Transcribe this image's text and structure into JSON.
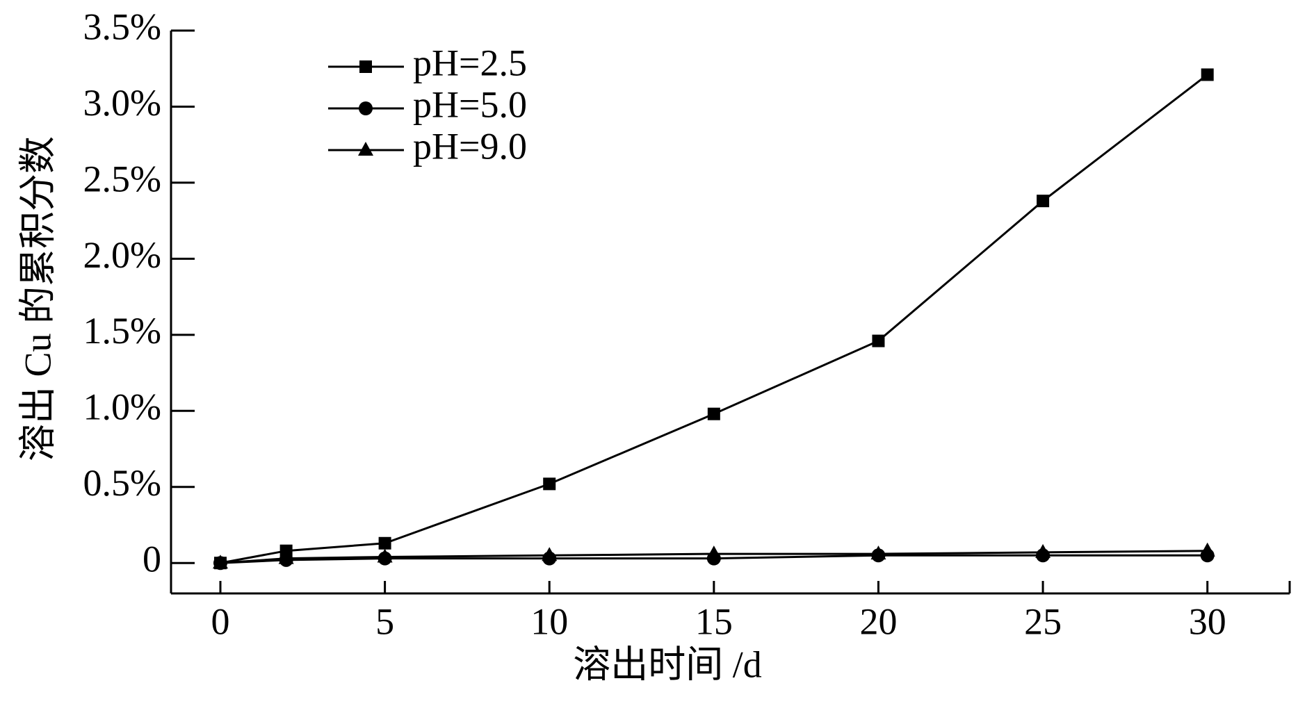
{
  "chart_data": {
    "type": "line",
    "x_label": "溶出时间 /d",
    "y_label": "溶出 Cu 的累积分数",
    "x": [
      0,
      2,
      5,
      10,
      15,
      20,
      25,
      30
    ],
    "series": [
      {
        "name": "pH=2.5",
        "color": "#000000",
        "marker": "square",
        "values": [
          0,
          0.08,
          0.13,
          0.52,
          0.98,
          1.46,
          2.38,
          3.21
        ]
      },
      {
        "name": "pH=5.0",
        "color": "#000000",
        "marker": "circle",
        "values": [
          0,
          0.02,
          0.03,
          0.03,
          0.03,
          0.05,
          0.05,
          0.05
        ]
      },
      {
        "name": "pH=9.0",
        "color": "#000000",
        "marker": "triangle",
        "values": [
          0,
          0.03,
          0.04,
          0.05,
          0.06,
          0.06,
          0.07,
          0.08
        ]
      }
    ],
    "xlim": [
      -1.5,
      32.5
    ],
    "xticks": [
      0,
      5,
      10,
      15,
      20,
      25,
      30
    ],
    "ylim": [
      -0.2,
      3.5
    ],
    "yticks": [
      0,
      {
        "value": 0.5,
        "label": "0.5%"
      },
      {
        "value": 1.0,
        "label": "1.0%"
      },
      {
        "value": 1.5,
        "label": "1.5%"
      },
      {
        "value": 2.0,
        "label": "2.0%"
      },
      {
        "value": 2.5,
        "label": "2.5%"
      },
      {
        "value": 3.0,
        "label": "3.0%"
      },
      {
        "value": 3.5,
        "label": "3.5%"
      }
    ],
    "grid": false,
    "legend": "upper left"
  }
}
